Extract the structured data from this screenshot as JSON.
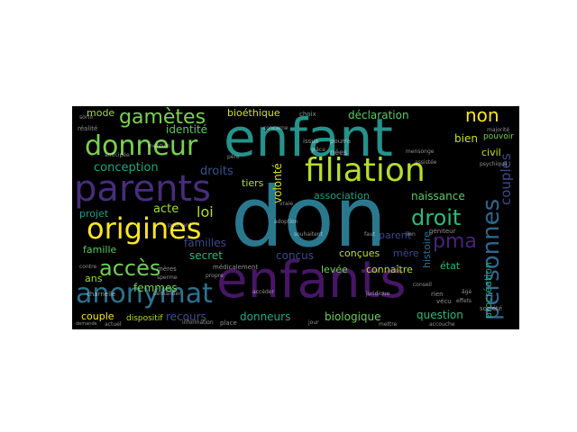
{
  "figure": {
    "type": "word-cloud",
    "background": "#000000",
    "palette": [
      "#440154",
      "#3b528b",
      "#21918c",
      "#5ec962",
      "#fde725"
    ]
  },
  "words": [
    {
      "text": "enfant",
      "color": "#26928c"
    },
    {
      "text": "don",
      "color": "#2a788e"
    },
    {
      "text": "enfants",
      "color": "#471665"
    },
    {
      "text": "parents",
      "color": "#472d7b"
    },
    {
      "text": "filiation",
      "color": "#b5de2b"
    },
    {
      "text": "donneur",
      "color": "#7ad151"
    },
    {
      "text": "origines",
      "color": "#fde725"
    },
    {
      "text": "anonymat",
      "color": "#2c728e"
    },
    {
      "text": "gamètes",
      "color": "#7ad151"
    },
    {
      "text": "accès",
      "color": "#6ece58"
    },
    {
      "text": "personnes",
      "color": "#31668e"
    },
    {
      "text": "droit",
      "color": "#35b779"
    },
    {
      "text": "pma",
      "color": "#482576"
    },
    {
      "text": "non",
      "color": "#fde725"
    },
    {
      "text": "couples",
      "color": "#3e4a89"
    },
    {
      "text": "conception",
      "color": "#21a685"
    },
    {
      "text": "volonté",
      "color": "#d8e219"
    },
    {
      "text": "déclaration",
      "color": "#5ec962"
    },
    {
      "text": "naissance",
      "color": "#5ec962"
    },
    {
      "text": "procréation",
      "color": "#22a884"
    },
    {
      "text": "loi",
      "color": "#b5de2b"
    },
    {
      "text": "acte",
      "color": "#a0da39"
    },
    {
      "text": "droits",
      "color": "#3b528b"
    },
    {
      "text": "secret",
      "color": "#2fb47c"
    },
    {
      "text": "familles",
      "color": "#3e4989"
    },
    {
      "text": "famille",
      "color": "#5ec962"
    },
    {
      "text": "femmes",
      "color": "#7ad151"
    },
    {
      "text": "donneurs",
      "color": "#22a884"
    },
    {
      "text": "recours",
      "color": "#3b528b"
    },
    {
      "text": "biologique",
      "color": "#6ece58"
    },
    {
      "text": "question",
      "color": "#35b779"
    },
    {
      "text": "couple",
      "color": "#fde725"
    },
    {
      "text": "dispositif",
      "color": "#b5de2b"
    },
    {
      "text": "identité",
      "color": "#5ec962"
    },
    {
      "text": "bioéthique",
      "color": "#d8e219"
    },
    {
      "text": "mode",
      "color": "#9fda3a"
    },
    {
      "text": "conçus",
      "color": "#3e4a89"
    },
    {
      "text": "conçues",
      "color": "#c2df23"
    },
    {
      "text": "tiers",
      "color": "#b5de2b"
    },
    {
      "text": "association",
      "color": "#1fa187"
    },
    {
      "text": "parent",
      "color": "#3e4989"
    },
    {
      "text": "mère",
      "color": "#3e4a89"
    },
    {
      "text": "état",
      "color": "#35b779"
    },
    {
      "text": "bien",
      "color": "#c8e020"
    },
    {
      "text": "civil",
      "color": "#c8e020"
    },
    {
      "text": "pouvoir",
      "color": "#7ad151"
    },
    {
      "text": "histoire",
      "color": "#2c728e"
    },
    {
      "text": "connaître",
      "color": "#b5de2b"
    },
    {
      "text": "levée",
      "color": "#6ece58"
    },
    {
      "text": "ans",
      "color": "#a0da39"
    },
    {
      "text": "projet",
      "color": "#1f9e89"
    },
    {
      "text": "médicalement",
      "color": "#ffffff"
    },
    {
      "text": "mères",
      "color": "#ffffff"
    },
    {
      "text": "société",
      "color": "#ffffff"
    },
    {
      "text": "nées",
      "color": "#ffffff"
    },
    {
      "text": "issus",
      "color": "#ffffff"
    },
    {
      "text": "réalité",
      "color": "#ffffff"
    },
    {
      "text": "géniteur",
      "color": "#ffffff"
    },
    {
      "text": "majorité",
      "color": "#ffffff"
    },
    {
      "text": "psychique",
      "color": "#ffffff"
    },
    {
      "text": "rien",
      "color": "#ffffff"
    },
    {
      "text": "vécu",
      "color": "#ffffff"
    },
    {
      "text": "adoption",
      "color": "#ffffff"
    },
    {
      "text": "pourra",
      "color": "#ffffff"
    },
    {
      "text": "information",
      "color": "#ffffff"
    },
    {
      "text": "place",
      "color": "#ffffff"
    },
    {
      "text": "charnelle",
      "color": "#ffffff"
    },
    {
      "text": "choix",
      "color": "#ffffff"
    },
    {
      "text": "grâce",
      "color": "#ffffff"
    },
    {
      "text": "conseil",
      "color": "#ffffff"
    },
    {
      "text": "accouche",
      "color": "#ffffff"
    },
    {
      "text": "souhaitent",
      "color": "#ffffff"
    },
    {
      "text": "accéder",
      "color": "#ffffff"
    },
    {
      "text": "faut",
      "color": "#ffffff"
    },
    {
      "text": "effets",
      "color": "#ffffff"
    },
    {
      "text": "sortir",
      "color": "#ffffff"
    },
    {
      "text": "âgé",
      "color": "#ffffff"
    },
    {
      "text": "demande",
      "color": "#ffffff"
    },
    {
      "text": "jour",
      "color": "#ffffff"
    },
    {
      "text": "mettre",
      "color": "#ffffff"
    },
    {
      "text": "anticipée",
      "color": "#ffffff"
    },
    {
      "text": "actuel",
      "color": "#ffffff"
    },
    {
      "text": "lien",
      "color": "#ffffff"
    },
    {
      "text": "sperme",
      "color": "#ffffff"
    },
    {
      "text": "concerne",
      "color": "#ffffff"
    },
    {
      "text": "pourtant",
      "color": "#ffffff"
    },
    {
      "text": "propre",
      "color": "#ffffff"
    },
    {
      "text": "père",
      "color": "#ffffff"
    },
    {
      "text": "mention",
      "color": "#ffffff"
    },
    {
      "text": "vraie",
      "color": "#ffffff"
    },
    {
      "text": "juridique",
      "color": "#ffffff"
    },
    {
      "text": "demander",
      "color": "#ffffff"
    },
    {
      "text": "mensonge",
      "color": "#ffffff"
    },
    {
      "text": "assistée",
      "color": "#ffffff"
    },
    {
      "text": "contre",
      "color": "#ffffff"
    }
  ]
}
